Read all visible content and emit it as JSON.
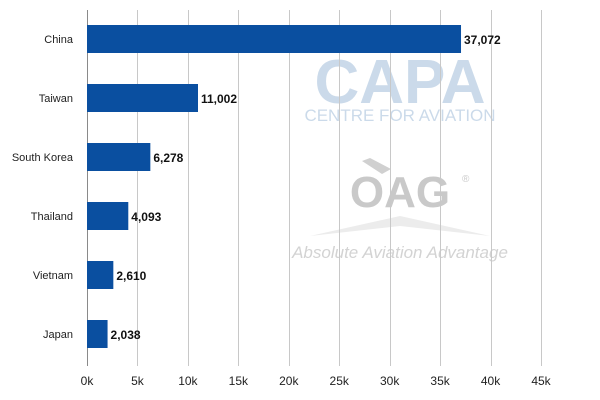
{
  "chart_data": {
    "type": "bar",
    "orientation": "horizontal",
    "title": "",
    "xlabel": "",
    "ylabel": "",
    "categories": [
      "China",
      "Taiwan",
      "South Korea",
      "Thailand",
      "Vietnam",
      "Japan"
    ],
    "values": [
      37072,
      11002,
      6278,
      4093,
      2610,
      2038
    ],
    "data_labels": [
      "37,072",
      "11,002",
      "6,278",
      "4,093",
      "2,610",
      "2,038"
    ],
    "xlim": [
      0,
      45000
    ],
    "x_ticks": [
      0,
      5000,
      10000,
      15000,
      20000,
      25000,
      30000,
      35000,
      40000,
      45000
    ],
    "x_tick_labels": [
      "0k",
      "5k",
      "10k",
      "15k",
      "20k",
      "25k",
      "30k",
      "35k",
      "40k",
      "45k"
    ],
    "grid": "vertical",
    "legend": "none",
    "bar_color": "#0a4fa0"
  },
  "watermarks": {
    "capa_logo": "CAPA",
    "capa_tagline": "CENTRE FOR AVIATION",
    "oag_logo": "OAG",
    "oag_registered": "®",
    "oag_tagline": "Absolute Aviation Advantage"
  }
}
